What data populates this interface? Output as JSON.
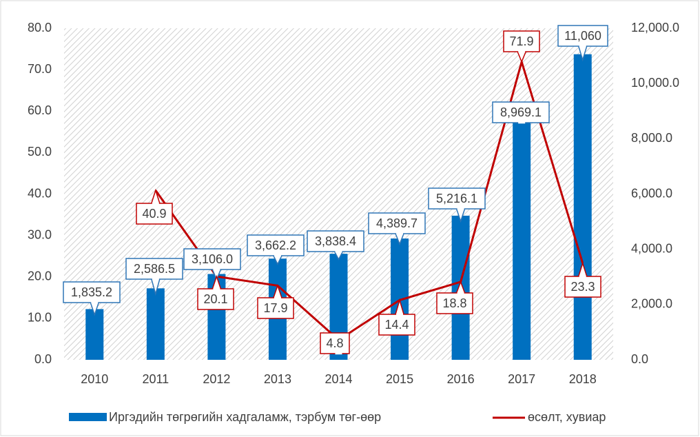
{
  "chart_data": {
    "type": "bar_line",
    "categories": [
      "2010",
      "2011",
      "2012",
      "2013",
      "2014",
      "2015",
      "2016",
      "2017",
      "2018"
    ],
    "series": [
      {
        "name": "Иргэдийн төгрөгийн хадгаламж, тэрбум төг-өөр",
        "type": "bar",
        "axis": "y2",
        "color": "#0070c0",
        "values": [
          1835.2,
          2586.5,
          3106.0,
          3662.2,
          3838.4,
          4389.7,
          5216.1,
          8969.1,
          11060
        ],
        "value_labels": [
          "1,835.2",
          "2,586.5",
          "3,106.0",
          "3,662.2",
          "3,838.4",
          "4,389.7",
          "5,216.1",
          "8,969.1",
          "11,060"
        ]
      },
      {
        "name": "өсөлт, хувиар",
        "type": "line",
        "axis": "y",
        "color": "#c00000",
        "values": [
          null,
          40.9,
          20.1,
          17.9,
          4.8,
          14.4,
          18.8,
          71.9,
          23.3
        ]
      }
    ],
    "ylim": [
      0,
      80
    ],
    "yticks": [
      {
        "value": 0,
        "label": "0.0"
      },
      {
        "value": 10,
        "label": "10.0"
      },
      {
        "value": 20,
        "label": "20.0"
      },
      {
        "value": 30,
        "label": "30.0"
      },
      {
        "value": 40,
        "label": "40.0"
      },
      {
        "value": 50,
        "label": "50.0"
      },
      {
        "value": 60,
        "label": "60.0"
      },
      {
        "value": 70,
        "label": "70.0"
      },
      {
        "value": 80,
        "label": "80.0"
      }
    ],
    "y2lim": [
      0,
      12000
    ],
    "y2ticks": [
      {
        "value": 0,
        "label": "0.0"
      },
      {
        "value": 2000,
        "label": "2,000.0"
      },
      {
        "value": 4000,
        "label": "4,000.0"
      },
      {
        "value": 6000,
        "label": "6,000.0"
      },
      {
        "value": 8000,
        "label": "8,000.0"
      },
      {
        "value": 10000,
        "label": "10,000.0"
      },
      {
        "value": 12000,
        "label": "12,000.0"
      }
    ],
    "legend": "bottom"
  }
}
